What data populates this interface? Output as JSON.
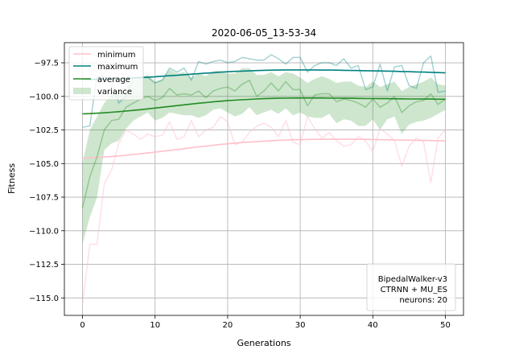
{
  "chart_data": {
    "type": "line",
    "title": "2020-06-05_13-53-34",
    "xlabel": "Generations",
    "ylabel": "Fitness",
    "xlim": [
      -2.5,
      52.5
    ],
    "ylim": [
      -116.3,
      -96.0
    ],
    "xticks": [
      0,
      10,
      20,
      30,
      40,
      50
    ],
    "xtick_labels": [
      "0",
      "10",
      "20",
      "30",
      "40",
      "50"
    ],
    "yticks": [
      -115.0,
      -112.5,
      -110.0,
      -107.5,
      -105.0,
      -102.5,
      -100.0,
      -97.5
    ],
    "ytick_labels": [
      "−115.0",
      "−112.5",
      "−110.0",
      "−107.5",
      "−105.0",
      "−102.5",
      "−100.0",
      "−97.5"
    ],
    "grid": true,
    "legend_position": "top-left",
    "x": [
      0,
      1,
      2,
      3,
      4,
      5,
      6,
      7,
      8,
      9,
      10,
      11,
      12,
      13,
      14,
      15,
      16,
      17,
      18,
      19,
      20,
      21,
      22,
      23,
      24,
      25,
      26,
      27,
      28,
      29,
      30,
      31,
      32,
      33,
      34,
      35,
      36,
      37,
      38,
      39,
      40,
      41,
      42,
      43,
      44,
      45,
      46,
      47,
      48,
      49,
      50
    ],
    "series": [
      {
        "name": "minimum",
        "role": "raw",
        "color": "#ffc0cb",
        "values": [
          -115.5,
          -111.0,
          -111.0,
          -106.5,
          -105.5,
          -103.5,
          -102.5,
          -102.8,
          -103.2,
          -102.8,
          -103.0,
          -102.9,
          -101.9,
          -103.2,
          -103.0,
          -101.8,
          -103.0,
          -102.5,
          -102.3,
          -101.5,
          -101.9,
          -103.6,
          -103.4,
          -102.7,
          -102.2,
          -102.0,
          -102.3,
          -103.0,
          -101.8,
          -103.4,
          -103.6,
          -101.5,
          -102.4,
          -103.1,
          -102.7,
          -103.3,
          -103.7,
          -103.6,
          -103.0,
          -103.3,
          -104.1,
          -102.4,
          -102.8,
          -103.3,
          -105.2,
          -103.7,
          -103.1,
          -103.4,
          -106.4,
          -103.1,
          -102.5
        ]
      },
      {
        "name": "minimum",
        "role": "trend",
        "color": "#ffc0cb",
        "values": [
          -104.6,
          -104.58,
          -104.55,
          -104.51,
          -104.47,
          -104.43,
          -104.38,
          -104.33,
          -104.27,
          -104.21,
          -104.15,
          -104.09,
          -104.02,
          -103.96,
          -103.89,
          -103.82,
          -103.76,
          -103.7,
          -103.64,
          -103.58,
          -103.53,
          -103.48,
          -103.44,
          -103.4,
          -103.36,
          -103.33,
          -103.3,
          -103.27,
          -103.25,
          -103.23,
          -103.22,
          -103.21,
          -103.2,
          -103.2,
          -103.19,
          -103.19,
          -103.19,
          -103.19,
          -103.2,
          -103.2,
          -103.21,
          -103.22,
          -103.23,
          -103.24,
          -103.25,
          -103.26,
          -103.27,
          -103.28,
          -103.29,
          -103.3,
          -103.31
        ]
      },
      {
        "name": "maximum",
        "role": "raw",
        "color": "#008080",
        "values": [
          -102.3,
          -102.2,
          -98.5,
          -98.5,
          -98.8,
          -100.5,
          -100.0,
          -98.6,
          -98.6,
          -98.6,
          -99.0,
          -98.8,
          -97.9,
          -98.2,
          -97.9,
          -98.8,
          -97.4,
          -97.6,
          -97.4,
          -97.3,
          -97.5,
          -97.4,
          -97.1,
          -97.2,
          -97.3,
          -97.3,
          -96.9,
          -97.2,
          -97.6,
          -97.1,
          -97.1,
          -98.2,
          -97.7,
          -97.5,
          -97.5,
          -97.7,
          -97.2,
          -97.9,
          -97.7,
          -99.5,
          -99.3,
          -97.6,
          -99.6,
          -97.8,
          -97.7,
          -99.2,
          -99.4,
          -97.5,
          -97.0,
          -99.7,
          -99.6
        ]
      },
      {
        "name": "maximum",
        "role": "trend",
        "color": "#008080",
        "values": [
          -98.75,
          -98.74,
          -98.73,
          -98.72,
          -98.7,
          -98.68,
          -98.66,
          -98.63,
          -98.6,
          -98.57,
          -98.54,
          -98.5,
          -98.46,
          -98.43,
          -98.39,
          -98.35,
          -98.31,
          -98.27,
          -98.24,
          -98.2,
          -98.17,
          -98.14,
          -98.12,
          -98.1,
          -98.08,
          -98.06,
          -98.05,
          -98.04,
          -98.03,
          -98.03,
          -98.03,
          -98.03,
          -98.03,
          -98.04,
          -98.04,
          -98.05,
          -98.06,
          -98.07,
          -98.08,
          -98.09,
          -98.1,
          -98.11,
          -98.12,
          -98.13,
          -98.15,
          -98.16,
          -98.18,
          -98.19,
          -98.21,
          -98.23,
          -98.25
        ]
      },
      {
        "name": "average",
        "role": "raw",
        "color": "#228b22",
        "values": [
          -108.3,
          -106.0,
          -104.5,
          -102.5,
          -101.8,
          -101.7,
          -100.8,
          -100.5,
          -100.2,
          -100.0,
          -100.3,
          -100.1,
          -99.4,
          -99.9,
          -99.8,
          -99.9,
          -99.6,
          -100.1,
          -99.6,
          -99.4,
          -99.3,
          -99.6,
          -99.1,
          -98.8,
          -100.0,
          -99.6,
          -99.0,
          -99.6,
          -98.9,
          -99.5,
          -99.5,
          -100.7,
          -99.9,
          -99.8,
          -99.8,
          -100.4,
          -100.2,
          -100.3,
          -100.5,
          -100.8,
          -100.2,
          -100.8,
          -100.5,
          -100.0,
          -101.2,
          -100.7,
          -100.4,
          -100.3,
          -99.8,
          -100.6,
          -100.2
        ]
      },
      {
        "name": "average",
        "role": "trend",
        "color": "#228b22",
        "values": [
          -101.3,
          -101.28,
          -101.25,
          -101.22,
          -101.18,
          -101.14,
          -101.09,
          -101.04,
          -100.99,
          -100.93,
          -100.87,
          -100.81,
          -100.75,
          -100.69,
          -100.63,
          -100.57,
          -100.51,
          -100.46,
          -100.41,
          -100.36,
          -100.32,
          -100.28,
          -100.25,
          -100.22,
          -100.19,
          -100.17,
          -100.15,
          -100.14,
          -100.13,
          -100.12,
          -100.12,
          -100.12,
          -100.12,
          -100.12,
          -100.13,
          -100.13,
          -100.14,
          -100.14,
          -100.15,
          -100.16,
          -100.16,
          -100.17,
          -100.17,
          -100.18,
          -100.18,
          -100.19,
          -100.19,
          -100.2,
          -100.2,
          -100.21,
          -100.21
        ]
      }
    ],
    "variance_band": {
      "name": "variance",
      "color": "#228b22",
      "lower": [
        -111.0,
        -109.0,
        -107.5,
        -104.0,
        -103.5,
        -103.3,
        -102.4,
        -101.8,
        -101.5,
        -101.2,
        -101.8,
        -101.6,
        -101.2,
        -101.3,
        -101.4,
        -101.4,
        -101.6,
        -101.4,
        -101.0,
        -100.9,
        -101.2,
        -101.5,
        -101.3,
        -100.8,
        -101.4,
        -101.2,
        -101.0,
        -101.3,
        -100.9,
        -101.4,
        -101.2,
        -101.5,
        -101.6,
        -101.6,
        -101.3,
        -102.0,
        -101.7,
        -101.8,
        -102.2,
        -102.2,
        -101.7,
        -102.5,
        -101.7,
        -101.5,
        -102.8,
        -102.1,
        -101.9,
        -101.8,
        -101.6,
        -101.3,
        -101.0
      ],
      "upper": [
        -105.0,
        -102.5,
        -101.5,
        -100.5,
        -99.8,
        -99.6,
        -99.3,
        -98.8,
        -98.6,
        -98.4,
        -98.9,
        -98.7,
        -98.0,
        -98.3,
        -98.2,
        -98.6,
        -98.3,
        -98.5,
        -98.1,
        -98.1,
        -98.3,
        -98.3,
        -97.9,
        -97.9,
        -98.4,
        -98.4,
        -98.2,
        -98.5,
        -98.2,
        -98.3,
        -98.6,
        -99.0,
        -98.7,
        -98.5,
        -98.7,
        -99.0,
        -98.9,
        -98.9,
        -99.2,
        -99.3,
        -98.9,
        -99.3,
        -99.1,
        -98.9,
        -99.6,
        -99.3,
        -99.1,
        -98.9,
        -98.6,
        -99.1,
        -99.2
      ]
    },
    "legend": [
      "minimum",
      "maximum",
      "average",
      "variance"
    ],
    "annotation_lines": [
      "BipedalWalker-v3",
      "CTRNN + MU_ES",
      "neurons: 20"
    ],
    "annotation_position": "bottom-right"
  }
}
